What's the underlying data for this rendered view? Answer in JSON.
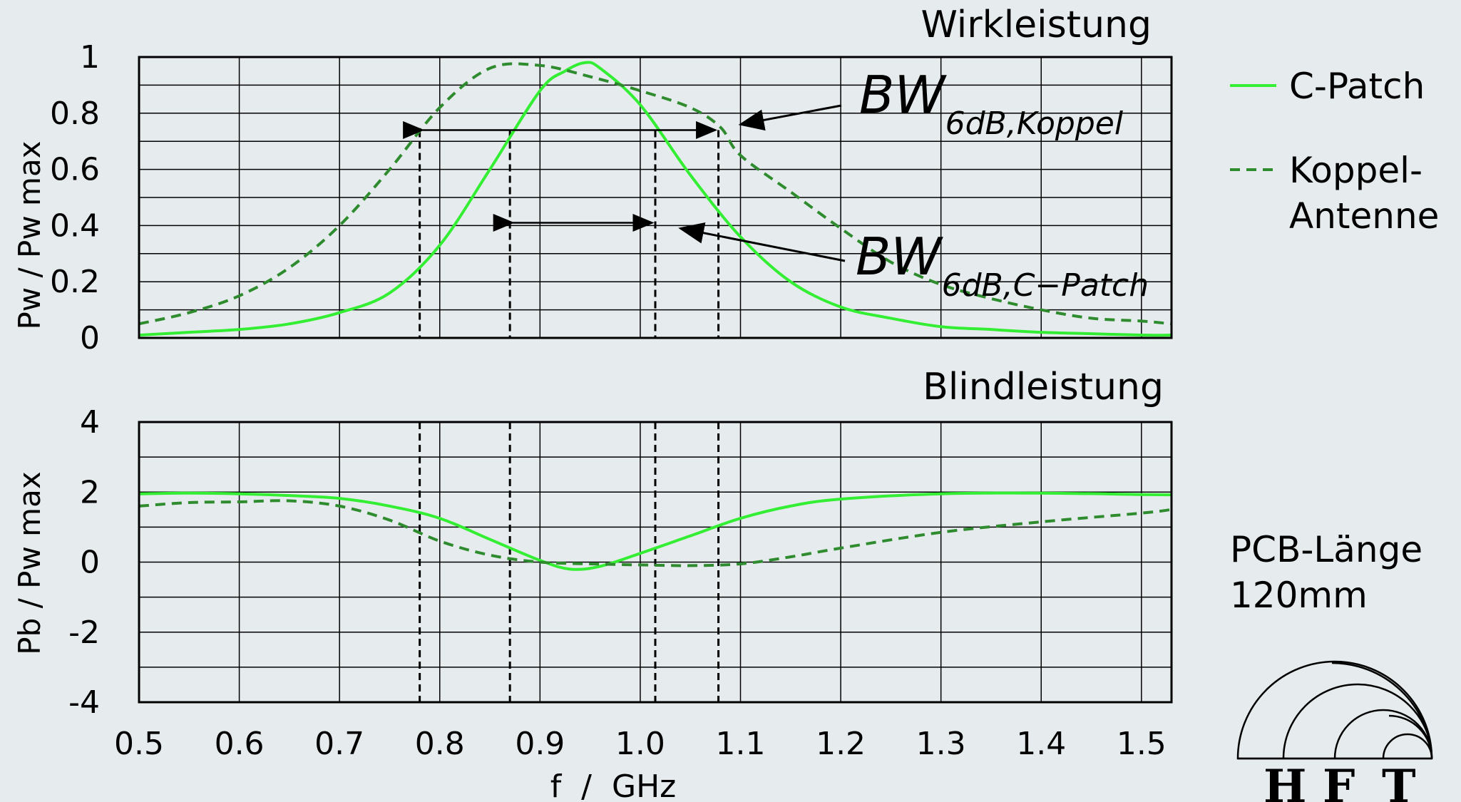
{
  "chart_data": [
    {
      "type": "line",
      "title": "Wirkleistung",
      "ylabel": "Pw / Pw max",
      "xlim": [
        0.5,
        1.53
      ],
      "ylim": [
        0,
        1
      ],
      "yticks": [
        "0",
        "0.2",
        "0.4",
        "0.6",
        "0.8",
        "1"
      ],
      "grid": true,
      "series": [
        {
          "name": "C-Patch",
          "color": "#33ee33",
          "dash": "solid",
          "x": [
            0.5,
            0.55,
            0.6,
            0.65,
            0.7,
            0.75,
            0.8,
            0.85,
            0.9,
            0.925,
            0.945,
            0.96,
            1.0,
            1.05,
            1.1,
            1.15,
            1.2,
            1.25,
            1.3,
            1.35,
            1.4,
            1.45,
            1.5,
            1.53
          ],
          "y": [
            0.01,
            0.02,
            0.03,
            0.05,
            0.09,
            0.16,
            0.33,
            0.6,
            0.88,
            0.95,
            0.98,
            0.96,
            0.83,
            0.58,
            0.36,
            0.2,
            0.11,
            0.07,
            0.04,
            0.03,
            0.02,
            0.015,
            0.01,
            0.01
          ]
        },
        {
          "name": "Koppel-Antenne",
          "color": "#2e8b2e",
          "dash": "dashed",
          "x": [
            0.5,
            0.55,
            0.6,
            0.65,
            0.7,
            0.75,
            0.8,
            0.85,
            0.9,
            0.95,
            1.0,
            1.05,
            1.08,
            1.1,
            1.15,
            1.2,
            1.25,
            1.3,
            1.35,
            1.4,
            1.45,
            1.5,
            1.53
          ],
          "y": [
            0.05,
            0.09,
            0.15,
            0.25,
            0.4,
            0.6,
            0.82,
            0.96,
            0.97,
            0.93,
            0.88,
            0.82,
            0.75,
            0.65,
            0.52,
            0.39,
            0.27,
            0.19,
            0.14,
            0.1,
            0.07,
            0.06,
            0.05
          ]
        }
      ],
      "annotations": [
        {
          "base": "BW",
          "sub": "6dB,Koppel",
          "x1": 0.78,
          "x2": 1.078,
          "y": 0.74
        },
        {
          "base": "BW",
          "sub": "6dB,C−Patch",
          "x1": 0.87,
          "x2": 1.015,
          "y": 0.41
        }
      ]
    },
    {
      "type": "line",
      "title": "Blindleistung",
      "xlabel": "f  /  GHz",
      "ylabel": "Pb / Pw max",
      "xlim": [
        0.5,
        1.53
      ],
      "ylim": [
        -4,
        4
      ],
      "xticks": [
        "0.5",
        "0.6",
        "0.7",
        "0.8",
        "0.9",
        "1.0",
        "1.1",
        "1.2",
        "1.3",
        "1.4",
        "1.5"
      ],
      "yticks": [
        "-4",
        "-2",
        "0",
        "2",
        "4"
      ],
      "grid": true,
      "series": [
        {
          "name": "C-Patch",
          "color": "#33ee33",
          "dash": "solid",
          "x": [
            0.5,
            0.55,
            0.6,
            0.65,
            0.7,
            0.75,
            0.8,
            0.85,
            0.9,
            0.93,
            0.96,
            1.0,
            1.05,
            1.1,
            1.15,
            1.2,
            1.3,
            1.4,
            1.5,
            1.53
          ],
          "y": [
            1.95,
            1.97,
            1.95,
            1.9,
            1.82,
            1.6,
            1.25,
            0.65,
            0.05,
            -0.2,
            -0.12,
            0.25,
            0.75,
            1.25,
            1.6,
            1.8,
            1.95,
            1.97,
            1.93,
            1.92
          ]
        },
        {
          "name": "Koppel-Antenne",
          "color": "#2e8b2e",
          "dash": "dashed",
          "x": [
            0.5,
            0.55,
            0.6,
            0.65,
            0.7,
            0.75,
            0.8,
            0.85,
            0.9,
            0.95,
            1.0,
            1.05,
            1.1,
            1.15,
            1.2,
            1.3,
            1.4,
            1.5,
            1.53
          ],
          "y": [
            1.6,
            1.7,
            1.72,
            1.75,
            1.6,
            1.2,
            0.6,
            0.2,
            0.0,
            -0.05,
            -0.08,
            -0.1,
            -0.05,
            0.15,
            0.4,
            0.85,
            1.15,
            1.4,
            1.5
          ]
        }
      ]
    }
  ],
  "legend": {
    "c_patch": "C-Patch",
    "koppel_line1": "Koppel-",
    "koppel_line2": "Antenne"
  },
  "note": {
    "line1": "PCB-Länge",
    "line2": "120mm"
  },
  "logo": {
    "letters": [
      "H",
      "F",
      "T"
    ]
  },
  "markers": {
    "color": "#000000",
    "x": [
      0.78,
      0.87,
      1.015,
      1.078
    ]
  }
}
